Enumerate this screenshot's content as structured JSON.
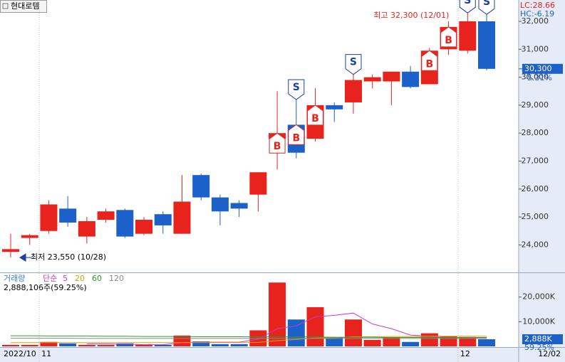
{
  "chart_data": {
    "type": "candlestick",
    "title": "현대로템",
    "lc_label": "LC:28.66",
    "hc_label": "HC:-6.19",
    "max_label": "최고 32,300 (12/01)",
    "min_label": "최저 23,550 (10/28)",
    "categories": [
      "2022/10",
      null,
      "11",
      null,
      null,
      null,
      null,
      null,
      null,
      null,
      null,
      null,
      null,
      null,
      null,
      null,
      null,
      null,
      null,
      null,
      null,
      null,
      null,
      null,
      "12",
      null
    ],
    "current_date": "12/02",
    "open": [
      23750,
      24250,
      24500,
      25300,
      24300,
      24900,
      25250,
      24400,
      25100,
      24400,
      26500,
      25700,
      25500,
      25800,
      27800,
      28300,
      27800,
      29000,
      29100,
      29850,
      29850,
      30200,
      29750,
      31000,
      30950,
      32000
    ],
    "high": [
      24400,
      24400,
      25600,
      25750,
      25000,
      25300,
      25300,
      25000,
      25200,
      26500,
      26550,
      25800,
      25600,
      26600,
      29500,
      29200,
      29600,
      29100,
      30100,
      30100,
      30200,
      30400,
      31050,
      32000,
      32300,
      32250
    ],
    "low": [
      23550,
      24000,
      24400,
      24650,
      24050,
      24800,
      24250,
      24350,
      24400,
      24400,
      25600,
      24700,
      25000,
      25200,
      26700,
      27100,
      27700,
      28400,
      28700,
      29600,
      29000,
      29600,
      29750,
      30800,
      30850,
      30250
    ],
    "close": [
      23850,
      24350,
      25450,
      24800,
      24850,
      25200,
      24300,
      24900,
      24700,
      25550,
      25700,
      25200,
      25300,
      26600,
      28000,
      27300,
      29000,
      28850,
      29900,
      30000,
      30200,
      29650,
      30950,
      31800,
      32000,
      30300
    ],
    "up_color": "#e8221c",
    "down_color": "#1b61c9",
    "ylim": [
      23018,
      32763
    ],
    "yticks": [
      {
        "value": 24000,
        "label": "24,000"
      },
      {
        "value": 25000,
        "label": "25,000"
      },
      {
        "value": 26000,
        "label": "26,000"
      },
      {
        "value": 27000,
        "label": "27,000"
      },
      {
        "value": 28000,
        "label": "28,000"
      },
      {
        "value": 29000,
        "label": "29,000"
      },
      {
        "value": 30000,
        "label": "30,000"
      },
      {
        "value": 31000,
        "label": "31,000"
      },
      {
        "value": 32000,
        "label": "32,000"
      }
    ],
    "current_price": {
      "value": 30300,
      "label": "30,300"
    },
    "change_label": "-5.31%",
    "buy_signals": [
      null,
      null,
      null,
      null,
      null,
      null,
      null,
      null,
      null,
      null,
      null,
      null,
      null,
      null,
      "B",
      "B",
      "B",
      null,
      null,
      null,
      null,
      null,
      "B",
      "B",
      null,
      null
    ],
    "sell_signals": [
      null,
      null,
      null,
      null,
      null,
      null,
      null,
      null,
      null,
      null,
      null,
      null,
      null,
      null,
      null,
      "S",
      null,
      null,
      "S",
      null,
      null,
      null,
      null,
      null,
      "S",
      "S"
    ],
    "volume": {
      "title": "거래량",
      "ma_label": "단순",
      "summary": "2,888,106주(59.25%)",
      "values": [
        600,
        600,
        1800,
        1200,
        600,
        600,
        1200,
        600,
        600,
        4400,
        2000,
        900,
        900,
        6500,
        25900,
        10900,
        15900,
        3800,
        10900,
        2600,
        3500,
        1800,
        5300,
        4100,
        3800,
        2888
      ],
      "ylim": [
        0,
        28000
      ],
      "yticks": [
        {
          "value": 10000,
          "label": "10,000K"
        },
        {
          "value": 20000,
          "label": "20,000K"
        }
      ],
      "current": {
        "value": 2888,
        "label": "2,888K"
      },
      "ratio_label": "59.25%",
      "ma": [
        {
          "name": "5",
          "color": "#c83cc8",
          "values": [
            null,
            null,
            null,
            null,
            1000,
            1000,
            900,
            700,
            700,
            1500,
            1700,
            1700,
            1700,
            2900,
            7200,
            8300,
            12000,
            12600,
            13500,
            9100,
            7200,
            4600,
            4000,
            3500,
            3600,
            3600
          ]
        },
        {
          "name": "20",
          "color": "#e0a000",
          "values": [
            1500,
            1500,
            1500,
            1500,
            1500,
            1500,
            1500,
            1500,
            1500,
            1500,
            1500,
            1500,
            1500,
            1600,
            2300,
            2800,
            3400,
            3500,
            3900,
            3900,
            4000,
            4000,
            4100,
            4100,
            4100,
            4100
          ]
        },
        {
          "name": "60",
          "color": "#2e9a2e",
          "values": [
            4300,
            4300,
            4200,
            4200,
            4200,
            4100,
            4100,
            4000,
            4000,
            4000,
            3900,
            3900,
            3900,
            3800,
            3800,
            3800,
            3800,
            3700,
            3700,
            3700,
            3600,
            3600,
            3600,
            3500,
            3500,
            3500
          ]
        },
        {
          "name": "120",
          "color": "#888888",
          "values": [
            3300,
            3300,
            3300,
            3300,
            3200,
            3200,
            3200,
            3200,
            3200,
            3200,
            3200,
            3200,
            3200,
            3200,
            3200,
            3200,
            3200,
            3200,
            3200,
            3200,
            3200,
            3200,
            3200,
            3200,
            3200,
            3200
          ]
        }
      ]
    }
  }
}
